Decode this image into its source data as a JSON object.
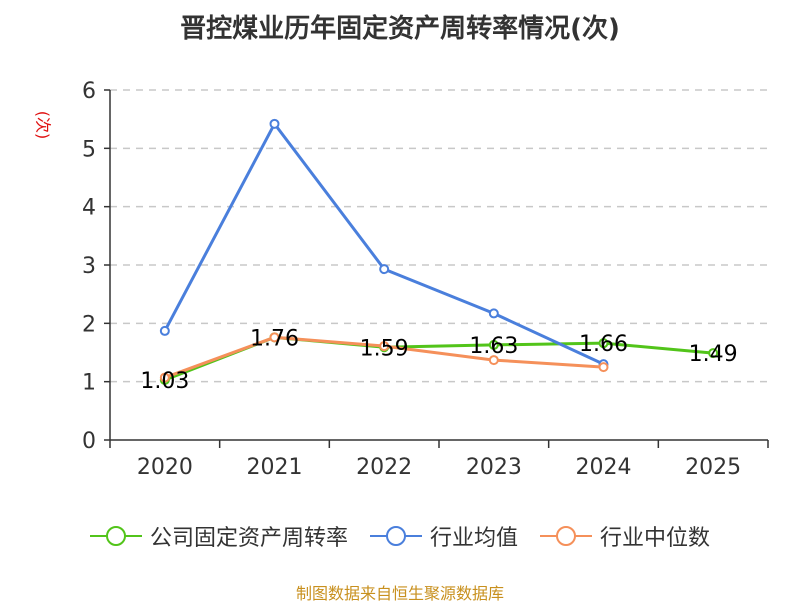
{
  "chart_data": {
    "type": "line",
    "title": "晋控煤业历年固定资产周转率情况(次)",
    "ylabel": "(次)",
    "xlabel": "",
    "categories": [
      "2020",
      "2021",
      "2022",
      "2023",
      "2024",
      "2025"
    ],
    "ylim": [
      0,
      6
    ],
    "yticks": [
      0,
      1,
      2,
      3,
      4,
      5,
      6
    ],
    "grid": true,
    "legend_position": "bottom",
    "series": [
      {
        "name": "公司固定资产周转率",
        "color": "#52c41a",
        "values": [
          1.03,
          1.76,
          1.59,
          1.63,
          1.66,
          1.49
        ],
        "labels": [
          "1.03",
          "1.76",
          "1.59",
          "1.63",
          "1.66",
          "1.49"
        ]
      },
      {
        "name": "行业均值",
        "color": "#4a7fdc",
        "values": [
          1.87,
          5.42,
          2.93,
          2.17,
          1.3,
          null
        ]
      },
      {
        "name": "行业中位数",
        "color": "#f5905a",
        "values": [
          1.07,
          1.76,
          1.61,
          1.37,
          1.25,
          null
        ]
      }
    ]
  },
  "source": "制图数据来自恒生聚源数据库"
}
